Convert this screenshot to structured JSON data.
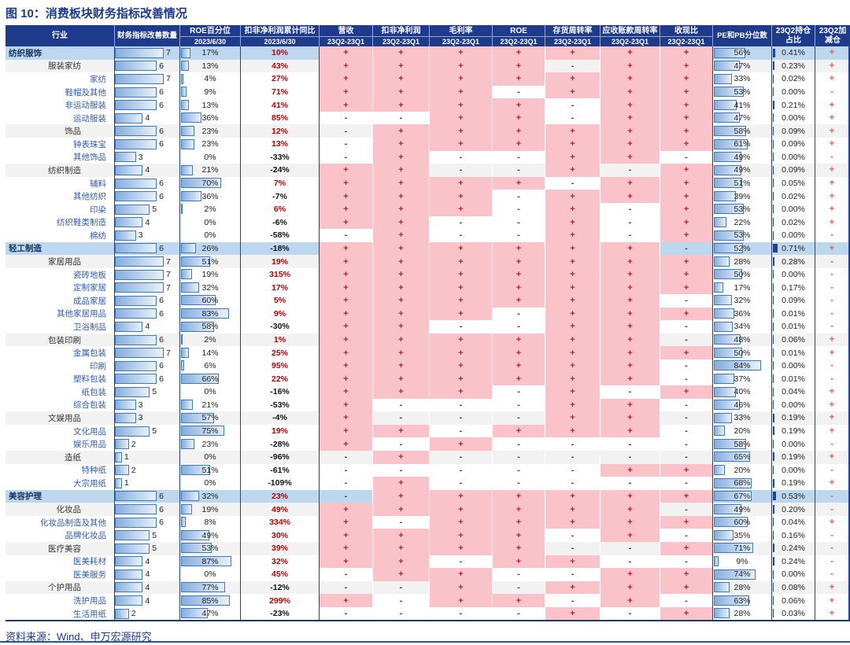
{
  "title": "图 10：消费板块财务指标改善情况",
  "source": "资料来源：Wind、申万宏源研究",
  "colors": {
    "header_bg": "#1e3a8a",
    "level1_row_bg": "#bdd7ee",
    "level2_row_bg": "#f2f2f2",
    "positive_cell_bg": "#f9c3c9",
    "positive_sign": "#bb1f27",
    "positive_yoy_text": "#c00000",
    "databar_border": "#3d78c2",
    "databar_fill": "#86aedd",
    "holding_bar": "#24418e",
    "position_change_text": "#e8625f"
  },
  "chart_data": {
    "type": "table",
    "columns": [
      {
        "label": "行业"
      },
      {
        "label": "财务指标改善数量"
      },
      {
        "label": "ROE百分位",
        "sub": "2023/6/30"
      },
      {
        "label": "扣非净利润累计同比",
        "sub": "2023/6/30"
      },
      {
        "label": "营收",
        "sub": "23Q2-23Q1"
      },
      {
        "label": "扣非净利润",
        "sub": "23Q2-23Q1"
      },
      {
        "label": "毛利率",
        "sub": "23Q2-23Q1"
      },
      {
        "label": "ROE",
        "sub": "23Q2-23Q1"
      },
      {
        "label": "存货周转率",
        "sub": "23Q2-23Q1"
      },
      {
        "label": "应收账款周转率",
        "sub": "23Q2-23Q1"
      },
      {
        "label": "收现比",
        "sub": "23Q2-23Q1"
      },
      {
        "label": "PE和PB分位数"
      },
      {
        "label": "23Q2持仓",
        "sub2": "占比"
      },
      {
        "label": "23Q2加",
        "sub2": "减仓"
      }
    ],
    "sign_column_names": [
      "营收",
      "扣非净利润",
      "毛利率",
      "ROE",
      "存货周转率",
      "应收账款周转率",
      "收现比"
    ],
    "rows": [
      {
        "name": "纺织服饰",
        "level": 1,
        "improved_count": 7,
        "roe_percentile": 17,
        "profit_yoy": 10,
        "signs": "+++++++",
        "pe_pb_percentile": 56,
        "holding_pct": 0.41,
        "position_change": "+"
      },
      {
        "name": "服装家纺",
        "level": 2,
        "improved_count": 6,
        "roe_percentile": 13,
        "profit_yoy": 43,
        "signs": "++++-++",
        "pe_pb_percentile": 47,
        "holding_pct": 0.23,
        "position_change": "+"
      },
      {
        "name": "家纺",
        "level": 3,
        "improved_count": 7,
        "roe_percentile": 4,
        "profit_yoy": 27,
        "signs": "+++++++",
        "pe_pb_percentile": 33,
        "holding_pct": 0.02,
        "position_change": "+"
      },
      {
        "name": "鞋帽及其他",
        "level": 3,
        "improved_count": 6,
        "roe_percentile": 9,
        "profit_yoy": 71,
        "signs": "+++-+++",
        "pe_pb_percentile": 53,
        "holding_pct": 0.0,
        "position_change": "-"
      },
      {
        "name": "非运动服装",
        "level": 3,
        "improved_count": 6,
        "roe_percentile": 13,
        "profit_yoy": 41,
        "signs": "++++-++",
        "pe_pb_percentile": 41,
        "holding_pct": 0.21,
        "position_change": "+"
      },
      {
        "name": "运动服装",
        "level": 3,
        "improved_count": 4,
        "roe_percentile": 36,
        "profit_yoy": 85,
        "signs": "--++-++",
        "pe_pb_percentile": 47,
        "holding_pct": 0.0,
        "position_change": "+"
      },
      {
        "name": "饰品",
        "level": 2,
        "improved_count": 6,
        "roe_percentile": 23,
        "profit_yoy": 12,
        "signs": "-++++++",
        "pe_pb_percentile": 58,
        "holding_pct": 0.09,
        "position_change": "+"
      },
      {
        "name": "钟表珠宝",
        "level": 3,
        "improved_count": 6,
        "roe_percentile": 23,
        "profit_yoy": 13,
        "signs": "-++++++",
        "pe_pb_percentile": 61,
        "holding_pct": 0.09,
        "position_change": "+"
      },
      {
        "name": "其他饰品",
        "level": 3,
        "improved_count": 3,
        "roe_percentile": 0,
        "profit_yoy": -33,
        "signs": "-+--++-",
        "pe_pb_percentile": 49,
        "holding_pct": 0.0,
        "position_change": "-"
      },
      {
        "name": "纺织制造",
        "level": 2,
        "improved_count": 4,
        "roe_percentile": 21,
        "profit_yoy": -24,
        "signs": "++--+-+",
        "pe_pb_percentile": 49,
        "holding_pct": 0.09,
        "position_change": "+"
      },
      {
        "name": "辅料",
        "level": 3,
        "improved_count": 6,
        "roe_percentile": 70,
        "profit_yoy": 7,
        "signs": "++++-++",
        "pe_pb_percentile": 51,
        "holding_pct": 0.05,
        "position_change": "+"
      },
      {
        "name": "其他纺织",
        "level": 3,
        "improved_count": 6,
        "roe_percentile": 36,
        "profit_yoy": -7,
        "signs": "+++-+++",
        "pe_pb_percentile": 39,
        "holding_pct": 0.02,
        "position_change": "+"
      },
      {
        "name": "印染",
        "level": 3,
        "improved_count": 5,
        "roe_percentile": 2,
        "profit_yoy": 6,
        "signs": "+++-+-+",
        "pe_pb_percentile": 53,
        "holding_pct": 0.0,
        "position_change": "+"
      },
      {
        "name": "纺织鞋类制造",
        "level": 3,
        "improved_count": 4,
        "roe_percentile": 0,
        "profit_yoy": -6,
        "signs": "++--+-+",
        "pe_pb_percentile": 22,
        "holding_pct": 0.02,
        "position_change": "+"
      },
      {
        "name": "棉纺",
        "level": 3,
        "improved_count": 3,
        "roe_percentile": 0,
        "profit_yoy": -58,
        "signs": "-+--+-+",
        "pe_pb_percentile": 53,
        "holding_pct": 0.0,
        "position_change": "-"
      },
      {
        "name": "轻工制造",
        "level": 1,
        "improved_count": 6,
        "roe_percentile": 26,
        "profit_yoy": -18,
        "signs": "++++++-",
        "pe_pb_percentile": 52,
        "holding_pct": 0.71,
        "position_change": "+"
      },
      {
        "name": "家居用品",
        "level": 2,
        "improved_count": 7,
        "roe_percentile": 51,
        "profit_yoy": 19,
        "signs": "+++++++",
        "pe_pb_percentile": 28,
        "holding_pct": 0.28,
        "position_change": "-"
      },
      {
        "name": "瓷砖地板",
        "level": 3,
        "improved_count": 7,
        "roe_percentile": 19,
        "profit_yoy": 315,
        "signs": "+++++++",
        "pe_pb_percentile": 50,
        "holding_pct": 0.0,
        "position_change": "-"
      },
      {
        "name": "定制家居",
        "level": 3,
        "improved_count": 7,
        "roe_percentile": 32,
        "profit_yoy": 17,
        "signs": "+++++++",
        "pe_pb_percentile": 17,
        "holding_pct": 0.17,
        "position_change": "-"
      },
      {
        "name": "成品家居",
        "level": 3,
        "improved_count": 6,
        "roe_percentile": 60,
        "profit_yoy": 5,
        "signs": "++++++-",
        "pe_pb_percentile": 32,
        "holding_pct": 0.09,
        "position_change": "-"
      },
      {
        "name": "其他家居用品",
        "level": 3,
        "improved_count": 6,
        "roe_percentile": 83,
        "profit_yoy": 9,
        "signs": "+++-+++",
        "pe_pb_percentile": 36,
        "holding_pct": 0.01,
        "position_change": "-"
      },
      {
        "name": "卫浴制品",
        "level": 3,
        "improved_count": 4,
        "roe_percentile": 58,
        "profit_yoy": -30,
        "signs": "++--++-",
        "pe_pb_percentile": 34,
        "holding_pct": 0.01,
        "position_change": "-"
      },
      {
        "name": "包装印刷",
        "level": 2,
        "improved_count": 6,
        "roe_percentile": 2,
        "profit_yoy": 1,
        "signs": "++++++-",
        "pe_pb_percentile": 48,
        "holding_pct": 0.06,
        "position_change": "+"
      },
      {
        "name": "金属包装",
        "level": 3,
        "improved_count": 7,
        "roe_percentile": 14,
        "profit_yoy": 25,
        "signs": "+++++++",
        "pe_pb_percentile": 50,
        "holding_pct": 0.01,
        "position_change": "+"
      },
      {
        "name": "印刷",
        "level": 3,
        "improved_count": 6,
        "roe_percentile": 6,
        "profit_yoy": 95,
        "signs": "++++++-",
        "pe_pb_percentile": 84,
        "holding_pct": 0.0,
        "position_change": "-"
      },
      {
        "name": "塑料包装",
        "level": 3,
        "improved_count": 6,
        "roe_percentile": 66,
        "profit_yoy": 22,
        "signs": "++++++-",
        "pe_pb_percentile": 37,
        "holding_pct": 0.01,
        "position_change": "-"
      },
      {
        "name": "纸包装",
        "level": 3,
        "improved_count": 5,
        "roe_percentile": 0,
        "profit_yoy": -16,
        "signs": "+++-+-+",
        "pe_pb_percentile": 40,
        "holding_pct": 0.04,
        "position_change": "+"
      },
      {
        "name": "综合包装",
        "level": 3,
        "improved_count": 3,
        "roe_percentile": 21,
        "profit_yoy": -53,
        "signs": "+---++-",
        "pe_pb_percentile": 46,
        "holding_pct": 0.0,
        "position_change": "+"
      },
      {
        "name": "文娱用品",
        "level": 2,
        "improved_count": 3,
        "roe_percentile": 57,
        "profit_yoy": -4,
        "signs": "+---++-",
        "pe_pb_percentile": 33,
        "holding_pct": 0.19,
        "position_change": "+"
      },
      {
        "name": "文化用品",
        "level": 3,
        "improved_count": 5,
        "roe_percentile": 75,
        "profit_yoy": 19,
        "signs": "++-+++-",
        "pe_pb_percentile": 20,
        "holding_pct": 0.19,
        "position_change": "+"
      },
      {
        "name": "娱乐用品",
        "level": 3,
        "improved_count": 2,
        "roe_percentile": 23,
        "profit_yoy": -28,
        "signs": "+-+----",
        "pe_pb_percentile": 58,
        "holding_pct": 0.0,
        "position_change": "-"
      },
      {
        "name": "造纸",
        "level": 2,
        "improved_count": 1,
        "roe_percentile": 0,
        "profit_yoy": -96,
        "signs": "-+-----",
        "pe_pb_percentile": 65,
        "holding_pct": 0.19,
        "position_change": "+"
      },
      {
        "name": "特种纸",
        "level": 3,
        "improved_count": 2,
        "roe_percentile": 51,
        "profit_yoy": -61,
        "signs": "-----++",
        "pe_pb_percentile": 20,
        "holding_pct": 0.0,
        "position_change": "-"
      },
      {
        "name": "大宗用纸",
        "level": 3,
        "improved_count": 1,
        "roe_percentile": 0,
        "profit_yoy": -109,
        "signs": "-+-----",
        "pe_pb_percentile": 68,
        "holding_pct": 0.19,
        "position_change": "+"
      },
      {
        "name": "美容护理",
        "level": 1,
        "improved_count": 6,
        "roe_percentile": 32,
        "profit_yoy": 23,
        "signs": "-++++++",
        "pe_pb_percentile": 67,
        "holding_pct": 0.53,
        "position_change": "-"
      },
      {
        "name": "化妆品",
        "level": 2,
        "improved_count": 6,
        "roe_percentile": 19,
        "profit_yoy": 49,
        "signs": "++++++-",
        "pe_pb_percentile": 49,
        "holding_pct": 0.2,
        "position_change": "-"
      },
      {
        "name": "化妆品制造及其他",
        "level": 3,
        "improved_count": 6,
        "roe_percentile": 8,
        "profit_yoy": 334,
        "signs": "+-+++++",
        "pe_pb_percentile": 60,
        "holding_pct": 0.04,
        "position_change": "+"
      },
      {
        "name": "品牌化妆品",
        "level": 3,
        "improved_count": 5,
        "roe_percentile": 49,
        "profit_yoy": 30,
        "signs": "++++-+-",
        "pe_pb_percentile": 35,
        "holding_pct": 0.16,
        "position_change": "-"
      },
      {
        "name": "医疗美容",
        "level": 2,
        "improved_count": 5,
        "roe_percentile": 53,
        "profit_yoy": 39,
        "signs": "++++--+",
        "pe_pb_percentile": 71,
        "holding_pct": 0.24,
        "position_change": "-"
      },
      {
        "name": "医美耗材",
        "level": 3,
        "improved_count": 4,
        "roe_percentile": 87,
        "profit_yoy": 32,
        "signs": "++-++--",
        "pe_pb_percentile": 9,
        "holding_pct": 0.24,
        "position_change": "-"
      },
      {
        "name": "医美服务",
        "level": 3,
        "improved_count": 4,
        "roe_percentile": 0,
        "profit_yoy": 45,
        "signs": "-++--++",
        "pe_pb_percentile": 74,
        "holding_pct": 0.0,
        "position_change": "-"
      },
      {
        "name": "个护用品",
        "level": 2,
        "improved_count": 4,
        "roe_percentile": 77,
        "profit_yoy": -12,
        "signs": "--+-+++",
        "pe_pb_percentile": 28,
        "holding_pct": 0.08,
        "position_change": "+"
      },
      {
        "name": "洗护用品",
        "level": 3,
        "improved_count": 4,
        "roe_percentile": 85,
        "profit_yoy": 299,
        "signs": "+-++-+-",
        "pe_pb_percentile": 63,
        "holding_pct": 0.06,
        "position_change": "+"
      },
      {
        "name": "生活用纸",
        "level": 3,
        "improved_count": 2,
        "roe_percentile": 47,
        "profit_yoy": -23,
        "signs": "----+-+",
        "pe_pb_percentile": 28,
        "holding_pct": 0.03,
        "position_change": "+"
      }
    ]
  }
}
